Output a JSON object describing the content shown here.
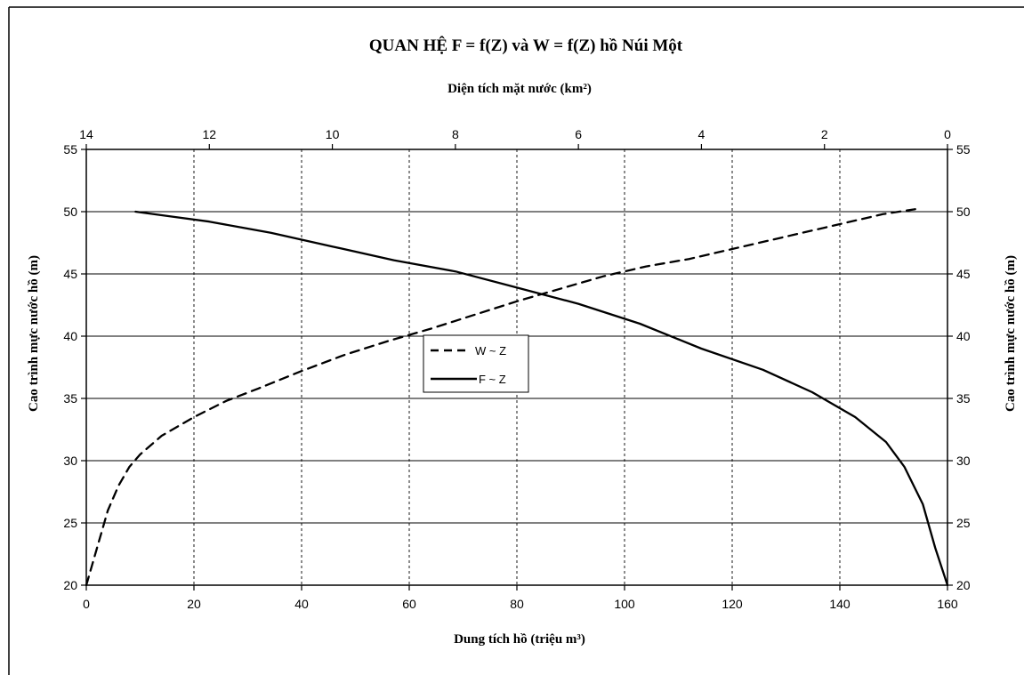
{
  "chart_data": {
    "type": "line",
    "title": "QUAN HỆ F =  f(Z) và W =  f(Z) hồ Núi Một",
    "x_top_label": "Diện tích mặt nước (km²)",
    "x_bottom_label": "Dung tích hồ  (triệu m³)",
    "y_left_label": "Cao trình mực nước hồ (m)",
    "y_right_label": "Cao trình mực nước hồ  (m)",
    "x_bottom_range": [
      0,
      160
    ],
    "x_bottom_ticks": [
      "0",
      "20",
      "40",
      "60",
      "80",
      "100",
      "120",
      "140",
      "160"
    ],
    "x_top_range": [
      14,
      0
    ],
    "x_top_ticks": [
      "14",
      "12",
      "10",
      "8",
      "6",
      "4",
      "2",
      "0"
    ],
    "y_range": [
      20,
      55
    ],
    "y_ticks": [
      "20",
      "25",
      "30",
      "35",
      "40",
      "45",
      "50",
      "55"
    ],
    "grid": true,
    "legend_position": "center",
    "series": [
      {
        "name": "W ~ Z",
        "axis": "bottom",
        "style": "dashed",
        "color": "#000000",
        "x": [
          0,
          2,
          4,
          6,
          8,
          10,
          14,
          20,
          26,
          32,
          40,
          48,
          56,
          64,
          72,
          80,
          88,
          96,
          104,
          112,
          120,
          130,
          140,
          148,
          154
        ],
        "y": [
          20,
          23,
          26,
          28,
          29.5,
          30.5,
          32,
          33.5,
          34.8,
          35.8,
          37.2,
          38.5,
          39.6,
          40.6,
          41.7,
          42.8,
          43.8,
          44.8,
          45.6,
          46.2,
          47,
          48,
          49,
          49.8,
          50.2
        ]
      },
      {
        "name": "F ~ Z",
        "axis": "top",
        "style": "solid",
        "color": "#000000",
        "x": [
          13.2,
          12.6,
          12.0,
          11.0,
          10.0,
          9.0,
          8.0,
          7.0,
          6.0,
          5.0,
          4.0,
          3.0,
          2.2,
          1.5,
          1.0,
          0.7,
          0.4,
          0.2,
          0.0
        ],
        "y": [
          50,
          49.6,
          49.2,
          48.3,
          47.2,
          46.1,
          45.2,
          43.9,
          42.6,
          41.0,
          39.0,
          37.3,
          35.5,
          33.5,
          31.5,
          29.5,
          26.5,
          23,
          20
        ]
      }
    ]
  }
}
